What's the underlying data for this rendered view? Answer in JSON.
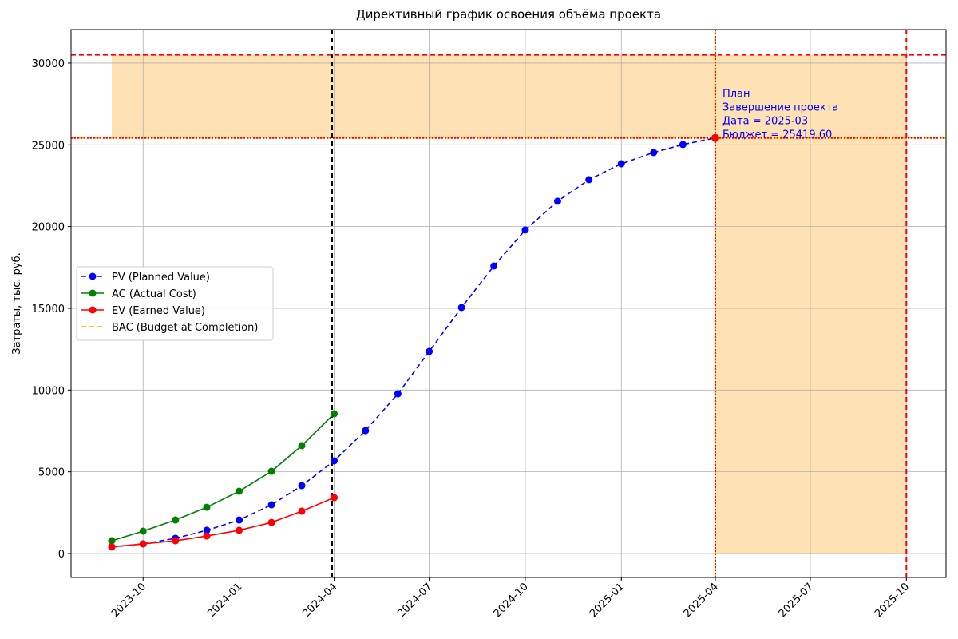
{
  "chart_data": {
    "type": "line",
    "title": "Директивный график освоения объёма проекта",
    "ylabel": "Затраты, тыс. руб.",
    "x": [
      "2023-09",
      "2023-10",
      "2023-11",
      "2023-12",
      "2024-01",
      "2024-02",
      "2024-03",
      "2024-04",
      "2024-05",
      "2024-06",
      "2024-07",
      "2024-08",
      "2024-09",
      "2024-10",
      "2024-11",
      "2024-12",
      "2025-01",
      "2025-02",
      "2025-03",
      "2025-04"
    ],
    "series": [
      {
        "name": "PV (Planned Value)",
        "color": "blue",
        "style": "dashed",
        "values": [
          400,
          590,
          930,
          1420,
          2050,
          2980,
          4150,
          5670,
          7520,
          9770,
          12360,
          15050,
          17590,
          19790,
          21550,
          22870,
          23840,
          24530,
          25020,
          25419.6
        ]
      },
      {
        "name": "AC (Actual Cost)",
        "color": "green",
        "style": "solid",
        "values": [
          780,
          1370,
          2050,
          2830,
          3810,
          5030,
          6600,
          8550,
          null,
          null,
          null,
          null,
          null,
          null,
          null,
          null,
          null,
          null,
          null,
          null
        ]
      },
      {
        "name": "EV (Earned Value)",
        "color": "red",
        "style": "solid",
        "values": [
          400,
          590,
          780,
          1070,
          1420,
          1900,
          2590,
          3420,
          null,
          null,
          null,
          null,
          null,
          null,
          null,
          null,
          null,
          null,
          null,
          null
        ]
      }
    ],
    "bac_line": {
      "name": "BAC (Budget at Completion)",
      "color": "orange",
      "style": "dashed",
      "value": 25419.6
    },
    "bac_marker": {
      "x": "2025-04",
      "value": 25419.6,
      "color": "red"
    },
    "hlines": [
      {
        "value": 30503.52,
        "color": "red",
        "style": "dashed"
      },
      {
        "value": 25419.6,
        "color": "red",
        "style": "dotted"
      }
    ],
    "vlines": [
      {
        "x": "2024-03-30",
        "color": "black",
        "style": "dashed"
      },
      {
        "x": "2025-04",
        "color": "orange",
        "style": "dashed"
      },
      {
        "x": "2025-04",
        "color": "red",
        "style": "dotted"
      },
      {
        "x": "2025-10",
        "color": "red",
        "style": "dashed"
      }
    ],
    "shaded": [
      {
        "x": [
          "2023-09",
          "2025-10"
        ],
        "y": [
          25419.6,
          30503.52
        ],
        "color": "#ffe2b3"
      },
      {
        "x": [
          "2025-04",
          "2025-10"
        ],
        "y": [
          0,
          25419.6
        ],
        "color": "#ffe2b3"
      }
    ],
    "annotation": {
      "x": "2025-04",
      "value": 25419.6,
      "color": "blue",
      "lines": [
        "План",
        "Завершение проекта",
        "Дата = 2025-03",
        "Бюджет = 25419.60"
      ]
    },
    "xlim": [
      "2023-07-24",
      "2025-11-08"
    ],
    "xticks": [
      "2023-10",
      "2024-01",
      "2024-04",
      "2024-07",
      "2024-10",
      "2025-01",
      "2025-04",
      "2025-07",
      "2025-10"
    ],
    "ylim": [
      -1466,
      32050
    ],
    "yticks": [
      0,
      5000,
      10000,
      15000,
      20000,
      25000,
      30000
    ],
    "grid": true,
    "legend": "center left"
  }
}
